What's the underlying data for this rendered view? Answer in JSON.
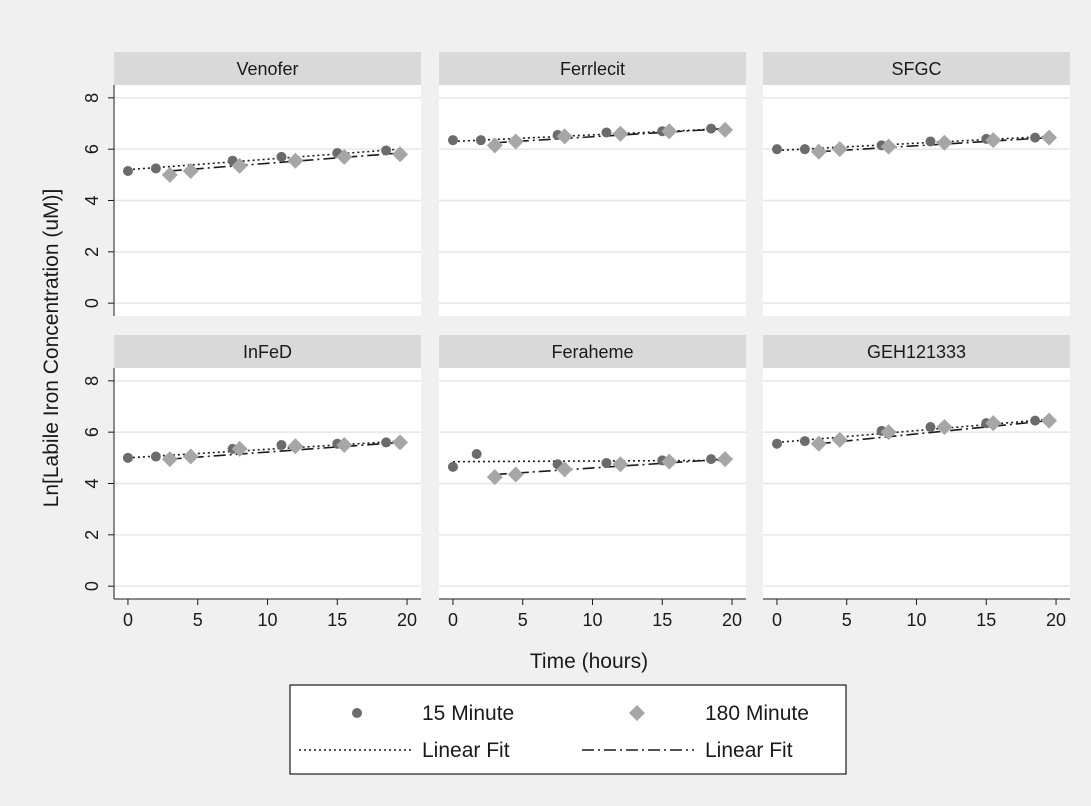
{
  "chart_data": {
    "type": "scatter",
    "ylabel": "Ln[Labile Iron Concentration (uM)]",
    "xlabel": "Time (hours)",
    "xlim": [
      -1,
      21
    ],
    "ylim": [
      -0.5,
      8.5
    ],
    "x_ticks": [
      "0",
      "5",
      "10",
      "15",
      "20"
    ],
    "y_ticks": [
      "0",
      "2",
      "4",
      "6",
      "8"
    ],
    "grid": "horizontal",
    "layout": "2 rows x 3 columns",
    "colors": {
      "background": "#f0f0f0",
      "panel": "#ffffff",
      "strip": "#d9d9d9",
      "grid": "#e6e6e6",
      "series_15": "#6b6b6b",
      "series_180": "#a6a6a6",
      "fit": "#1a1a1a"
    },
    "legend": {
      "placement": "bottom",
      "entries": [
        {
          "label": "15 Minute",
          "marker": "circle",
          "color": "#6b6b6b"
        },
        {
          "label": "180 Minute",
          "marker": "diamond",
          "color": "#a6a6a6"
        },
        {
          "label": "Linear Fit",
          "line": "dotted"
        },
        {
          "label": "Linear Fit",
          "line": "dash-dot"
        }
      ]
    },
    "panels": [
      {
        "title": "Venofer",
        "series": [
          {
            "marker": "circle",
            "points": [
              [
                0,
                5.15
              ],
              [
                2,
                5.25
              ],
              [
                7.5,
                5.55
              ],
              [
                11,
                5.7
              ],
              [
                15,
                5.85
              ],
              [
                18.5,
                5.95
              ]
            ]
          },
          {
            "marker": "diamond",
            "points": [
              [
                3,
                5.0
              ],
              [
                4.5,
                5.15
              ],
              [
                8,
                5.35
              ],
              [
                12,
                5.55
              ],
              [
                15.5,
                5.7
              ],
              [
                19.5,
                5.8
              ]
            ]
          }
        ],
        "fits": [
          {
            "style": "dotted",
            "x": [
              0,
              19.5
            ],
            "y": [
              5.2,
              6.0
            ]
          },
          {
            "style": "dash-dot",
            "x": [
              3,
              19.5
            ],
            "y": [
              5.15,
              5.85
            ]
          }
        ]
      },
      {
        "title": "Ferrlecit",
        "series": [
          {
            "marker": "circle",
            "points": [
              [
                0,
                6.35
              ],
              [
                2,
                6.35
              ],
              [
                7.5,
                6.55
              ],
              [
                11,
                6.65
              ],
              [
                15,
                6.7
              ],
              [
                18.5,
                6.8
              ]
            ]
          },
          {
            "marker": "diamond",
            "points": [
              [
                3,
                6.15
              ],
              [
                4.5,
                6.3
              ],
              [
                8,
                6.5
              ],
              [
                12,
                6.6
              ],
              [
                15.5,
                6.7
              ],
              [
                19.5,
                6.75
              ]
            ]
          }
        ],
        "fits": [
          {
            "style": "dotted",
            "x": [
              0,
              19.5
            ],
            "y": [
              6.3,
              6.8
            ]
          },
          {
            "style": "dash-dot",
            "x": [
              3,
              19.5
            ],
            "y": [
              6.25,
              6.8
            ]
          }
        ]
      },
      {
        "title": "SFGC",
        "series": [
          {
            "marker": "circle",
            "points": [
              [
                0,
                6.0
              ],
              [
                2,
                6.0
              ],
              [
                7.5,
                6.15
              ],
              [
                11,
                6.3
              ],
              [
                15,
                6.4
              ],
              [
                18.5,
                6.45
              ]
            ]
          },
          {
            "marker": "diamond",
            "points": [
              [
                3,
                5.9
              ],
              [
                4.5,
                6.0
              ],
              [
                8,
                6.1
              ],
              [
                12,
                6.25
              ],
              [
                15.5,
                6.35
              ],
              [
                19.5,
                6.45
              ]
            ]
          }
        ],
        "fits": [
          {
            "style": "dotted",
            "x": [
              0,
              19.5
            ],
            "y": [
              5.95,
              6.5
            ]
          },
          {
            "style": "dash-dot",
            "x": [
              3,
              19.5
            ],
            "y": [
              5.9,
              6.45
            ]
          }
        ]
      },
      {
        "title": "InFeD",
        "series": [
          {
            "marker": "circle",
            "points": [
              [
                0,
                5.0
              ],
              [
                2,
                5.05
              ],
              [
                7.5,
                5.35
              ],
              [
                11,
                5.5
              ],
              [
                15,
                5.55
              ],
              [
                18.5,
                5.6
              ]
            ]
          },
          {
            "marker": "diamond",
            "points": [
              [
                3,
                4.95
              ],
              [
                4.5,
                5.05
              ],
              [
                8,
                5.35
              ],
              [
                12,
                5.45
              ],
              [
                15.5,
                5.5
              ],
              [
                19.5,
                5.6
              ]
            ]
          }
        ],
        "fits": [
          {
            "style": "dotted",
            "x": [
              0,
              19.5
            ],
            "y": [
              5.0,
              5.65
            ]
          },
          {
            "style": "dash-dot",
            "x": [
              3,
              19.5
            ],
            "y": [
              4.95,
              5.6
            ]
          }
        ]
      },
      {
        "title": "Feraheme",
        "series": [
          {
            "marker": "circle",
            "points": [
              [
                0,
                4.65
              ],
              [
                1.7,
                5.15
              ],
              [
                7.5,
                4.75
              ],
              [
                11,
                4.8
              ],
              [
                15,
                4.9
              ],
              [
                18.5,
                4.95
              ]
            ]
          },
          {
            "marker": "diamond",
            "points": [
              [
                3,
                4.25
              ],
              [
                4.5,
                4.35
              ],
              [
                8,
                4.55
              ],
              [
                12,
                4.75
              ],
              [
                15.5,
                4.85
              ],
              [
                19.5,
                4.95
              ]
            ]
          }
        ],
        "fits": [
          {
            "style": "dotted",
            "x": [
              0,
              19.5
            ],
            "y": [
              4.85,
              4.9
            ]
          },
          {
            "style": "dash-dot",
            "x": [
              3,
              19.5
            ],
            "y": [
              4.35,
              4.95
            ]
          }
        ]
      },
      {
        "title": "GEH121333",
        "series": [
          {
            "marker": "circle",
            "points": [
              [
                0,
                5.55
              ],
              [
                2,
                5.65
              ],
              [
                7.5,
                6.05
              ],
              [
                11,
                6.2
              ],
              [
                15,
                6.35
              ],
              [
                18.5,
                6.45
              ]
            ]
          },
          {
            "marker": "diamond",
            "points": [
              [
                3,
                5.55
              ],
              [
                4.5,
                5.7
              ],
              [
                8,
                6.0
              ],
              [
                12,
                6.2
              ],
              [
                15.5,
                6.35
              ],
              [
                19.5,
                6.45
              ]
            ]
          }
        ],
        "fits": [
          {
            "style": "dotted",
            "x": [
              0,
              19.5
            ],
            "y": [
              5.6,
              6.5
            ]
          },
          {
            "style": "dash-dot",
            "x": [
              3,
              19.5
            ],
            "y": [
              5.55,
              6.45
            ]
          }
        ]
      }
    ]
  }
}
